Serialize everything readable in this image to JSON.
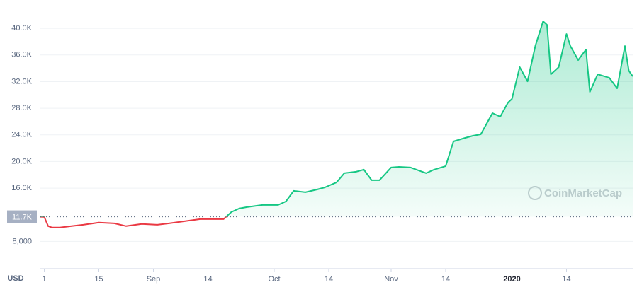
{
  "chart_data": {
    "type": "line",
    "y_axis_label": "USD",
    "watermark": "CoinMarketCap",
    "x": [
      0,
      1,
      2,
      3,
      5,
      8,
      11,
      15,
      19,
      22,
      26,
      30,
      33,
      37,
      41,
      44,
      47,
      49,
      51,
      53,
      57,
      61,
      63,
      65,
      68,
      71,
      73,
      76,
      78,
      81,
      83,
      85,
      87,
      90,
      92,
      95,
      99,
      101,
      104,
      106,
      109,
      111,
      113,
      116,
      118,
      120,
      121,
      123,
      125,
      127,
      129,
      130,
      131,
      133,
      135,
      136,
      138,
      140,
      141,
      143,
      146,
      148,
      150,
      151,
      152
    ],
    "values": [
      11700,
      11670,
      10290,
      10080,
      10080,
      10290,
      10500,
      10820,
      10710,
      10290,
      10610,
      10500,
      10710,
      11030,
      11350,
      11350,
      11350,
      12410,
      12940,
      13150,
      13470,
      13470,
      14000,
      15590,
      15380,
      15800,
      16120,
      16870,
      18250,
      18460,
      18780,
      17190,
      17190,
      19100,
      19200,
      19100,
      18250,
      18780,
      19310,
      23020,
      23550,
      23870,
      24080,
      27270,
      26740,
      28860,
      29390,
      34170,
      32040,
      37350,
      41060,
      40530,
      33100,
      34170,
      39150,
      37350,
      35230,
      36820,
      30450,
      33100,
      32570,
      30980,
      37350,
      33630,
      32790
    ],
    "reference": {
      "value": 11700,
      "label": "11.7K"
    },
    "color_up": "#16c784",
    "color_down": "#ea3943",
    "xlim": [
      0,
      152
    ],
    "xticks": [
      {
        "value": 1,
        "label": "1"
      },
      {
        "value": 15,
        "label": "15"
      },
      {
        "value": 29,
        "label": "Sep"
      },
      {
        "value": 43,
        "label": "14"
      },
      {
        "value": 60,
        "label": "Oct"
      },
      {
        "value": 74,
        "label": "14"
      },
      {
        "value": 90,
        "label": "Nov"
      },
      {
        "value": 104,
        "label": "14"
      },
      {
        "value": 121,
        "label": "2020"
      },
      {
        "value": 135,
        "label": "14"
      }
    ],
    "ylim": [
      3900,
      43200
    ],
    "yticks": [
      {
        "value": 8000,
        "label": "8,000"
      },
      {
        "value": 16000,
        "label": "16.0K"
      },
      {
        "value": 20000,
        "label": "20.0K"
      },
      {
        "value": 24000,
        "label": "24.0K"
      },
      {
        "value": 28000,
        "label": "28.0K"
      },
      {
        "value": 32000,
        "label": "32.0K"
      },
      {
        "value": 36000,
        "label": "36.0K"
      },
      {
        "value": 40000,
        "label": "40.0K"
      }
    ],
    "grid": true
  }
}
